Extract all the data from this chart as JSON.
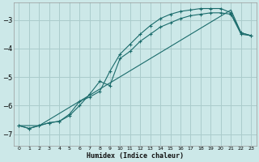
{
  "xlabel": "Humidex (Indice chaleur)",
  "bg_color": "#cce8e8",
  "grid_color": "#aacccc",
  "line_color": "#1a6b6b",
  "xlim": [
    -0.5,
    23.5
  ],
  "ylim": [
    -7.4,
    -2.4
  ],
  "yticks": [
    -7,
    -6,
    -5,
    -4,
    -3
  ],
  "xticks": [
    0,
    1,
    2,
    3,
    4,
    5,
    6,
    7,
    8,
    9,
    10,
    11,
    12,
    13,
    14,
    15,
    16,
    17,
    18,
    19,
    20,
    21,
    22,
    23
  ],
  "line1_x": [
    0,
    1,
    2,
    3,
    4,
    5,
    6,
    7,
    8,
    9,
    10,
    11,
    12,
    13,
    14,
    15,
    16,
    17,
    18,
    19,
    20,
    21,
    22,
    23
  ],
  "line1_y": [
    -6.7,
    -6.8,
    -6.7,
    -6.6,
    -6.55,
    -6.3,
    -5.85,
    -5.7,
    -5.5,
    -4.8,
    -4.2,
    -3.85,
    -3.5,
    -3.2,
    -2.95,
    -2.8,
    -2.7,
    -2.65,
    -2.6,
    -2.6,
    -2.6,
    -2.75,
    -3.45,
    -3.55
  ],
  "line2_x": [
    0,
    1,
    2,
    3,
    4,
    5,
    6,
    7,
    8,
    9,
    10,
    11,
    12,
    13,
    14,
    15,
    16,
    17,
    18,
    19,
    20,
    21,
    22,
    23
  ],
  "line2_y": [
    -6.7,
    -6.8,
    -6.7,
    -6.6,
    -6.55,
    -6.35,
    -6.0,
    -5.6,
    -5.15,
    -5.3,
    -4.35,
    -4.1,
    -3.75,
    -3.5,
    -3.25,
    -3.1,
    -2.95,
    -2.85,
    -2.8,
    -2.75,
    -2.75,
    -2.8,
    -3.5,
    -3.55
  ],
  "line3_x": [
    0,
    2,
    21,
    22,
    23
  ],
  "line3_y": [
    -6.7,
    -6.7,
    -2.65,
    -3.45,
    -3.55
  ]
}
